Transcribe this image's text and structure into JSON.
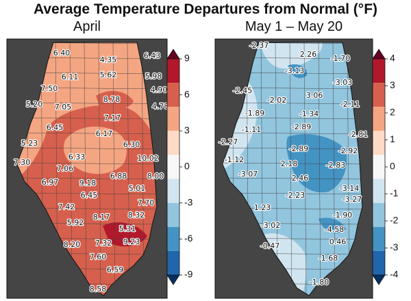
{
  "title": "Average Temperature Departures from Normal (°F)",
  "panels": [
    {
      "subtitle": "April",
      "colorbar_ticks": [
        "9",
        "6",
        "3",
        "0",
        "-3",
        "-6",
        "-9"
      ],
      "colors": [
        "#67001f",
        "#b2182b",
        "#d6604d",
        "#f4a582",
        "#fddbc7",
        "#f7f7f7",
        "#d1e5f0",
        "#92c5de",
        "#4393c3",
        "#2166ac",
        "#053061"
      ],
      "labels": [
        {
          "text": "6.40",
          "pos": [
            90,
            78
          ]
        },
        {
          "text": "4.35",
          "pos": [
            158,
            88
          ]
        },
        {
          "text": "6.43",
          "pos": [
            222,
            82
          ]
        },
        {
          "text": "6.11",
          "pos": [
            102,
            113
          ]
        },
        {
          "text": "5.62",
          "pos": [
            158,
            110
          ]
        },
        {
          "text": "5.98",
          "pos": [
            224,
            112
          ]
        },
        {
          "text": "7.50",
          "pos": [
            72,
            130
          ]
        },
        {
          "text": "4.90",
          "pos": [
            232,
            132
          ]
        },
        {
          "text": "5.20",
          "pos": [
            50,
            153
          ]
        },
        {
          "text": "7.05",
          "pos": [
            92,
            157
          ]
        },
        {
          "text": "8.78",
          "pos": [
            163,
            146
          ]
        },
        {
          "text": "4.78",
          "pos": [
            234,
            156
          ]
        },
        {
          "text": "7.17",
          "pos": [
            164,
            173
          ]
        },
        {
          "text": "6.45",
          "pos": [
            80,
            187
          ]
        },
        {
          "text": "6.17",
          "pos": [
            152,
            196
          ]
        },
        {
          "text": "5.23",
          "pos": [
            43,
            210
          ]
        },
        {
          "text": "6.30",
          "pos": [
            192,
            212
          ]
        },
        {
          "text": "6.33",
          "pos": [
            112,
            230
          ]
        },
        {
          "text": "10.02",
          "pos": [
            216,
            232
          ]
        },
        {
          "text": "7.30",
          "pos": [
            32,
            238
          ]
        },
        {
          "text": "7.06",
          "pos": [
            95,
            247
          ]
        },
        {
          "text": "6.88",
          "pos": [
            173,
            258
          ]
        },
        {
          "text": "8.00",
          "pos": [
            227,
            258
          ]
        },
        {
          "text": "6.97",
          "pos": [
            73,
            267
          ]
        },
        {
          "text": "9.18",
          "pos": [
            128,
            268
          ]
        },
        {
          "text": "5.01",
          "pos": [
            200,
            276
          ]
        },
        {
          "text": "6.45",
          "pos": [
            130,
            286
          ]
        },
        {
          "text": "7.70",
          "pos": [
            213,
            297
          ]
        },
        {
          "text": "7.42",
          "pos": [
            97,
            303
          ]
        },
        {
          "text": "8.17",
          "pos": [
            148,
            318
          ]
        },
        {
          "text": "8.32",
          "pos": [
            199,
            315
          ]
        },
        {
          "text": "5.92",
          "pos": [
            110,
            326
          ]
        },
        {
          "text": "5.31",
          "pos": [
            186,
            335
          ]
        },
        {
          "text": "9.23",
          "pos": [
            192,
            354
          ]
        },
        {
          "text": "7.32",
          "pos": [
            151,
            356
          ]
        },
        {
          "text": "8.20",
          "pos": [
            105,
            358
          ]
        },
        {
          "text": "7.60",
          "pos": [
            143,
            376
          ]
        },
        {
          "text": "6.59",
          "pos": [
            168,
            395
          ]
        },
        {
          "text": "8.58",
          "pos": [
            143,
            423
          ]
        }
      ]
    },
    {
      "subtitle": "May 1 – May 20",
      "colorbar_ticks": [
        "4",
        "3",
        "2",
        "1",
        "0",
        "-1",
        "-2",
        "-3",
        "-4"
      ],
      "colors": [
        "#67001f",
        "#b2182b",
        "#d6604d",
        "#f4a582",
        "#fddbc7",
        "#f7f7f7",
        "#d1e5f0",
        "#92c5de",
        "#4393c3",
        "#2166ac",
        "#053061"
      ],
      "labels": [
        {
          "text": "-2.37",
          "pos": [
            378,
            67
          ]
        },
        {
          "text": "2.26",
          "pos": [
            450,
            80
          ]
        },
        {
          "text": "-1.70",
          "pos": [
            497,
            86
          ]
        },
        {
          "text": "-3.13",
          "pos": [
            430,
            104
          ]
        },
        {
          "text": "-3.03",
          "pos": [
            500,
            121
          ]
        },
        {
          "text": "-2.45",
          "pos": [
            354,
            133
          ]
        },
        {
          "text": "3.06",
          "pos": [
            459,
            140
          ]
        },
        {
          "text": "-2.02",
          "pos": [
            404,
            147
          ]
        },
        {
          "text": "-2.11",
          "pos": [
            511,
            153
          ]
        },
        {
          "text": "-1.89",
          "pos": [
            372,
            166
          ]
        },
        {
          "text": "-1.34",
          "pos": [
            451,
            167
          ]
        },
        {
          "text": "-2.89",
          "pos": [
            440,
            186
          ]
        },
        {
          "text": "-1.11",
          "pos": [
            367,
            190
          ]
        },
        {
          "text": "-2.81",
          "pos": [
            523,
            197
          ]
        },
        {
          "text": "-2.27",
          "pos": [
            333,
            208
          ]
        },
        {
          "text": "-2.89",
          "pos": [
            436,
            218
          ]
        },
        {
          "text": "-2.92",
          "pos": [
            508,
            221
          ]
        },
        {
          "text": "-1.12",
          "pos": [
            342,
            234
          ]
        },
        {
          "text": "2.18",
          "pos": [
            422,
            240
          ]
        },
        {
          "text": "-2.83",
          "pos": [
            490,
            242
          ]
        },
        {
          "text": "-3.07",
          "pos": [
            362,
            255
          ]
        },
        {
          "text": "2.46",
          "pos": [
            438,
            261
          ]
        },
        {
          "text": "-3.14",
          "pos": [
            510,
            276
          ]
        },
        {
          "text": "-2.23",
          "pos": [
            431,
            286
          ]
        },
        {
          "text": "-3.27",
          "pos": [
            514,
            292
          ]
        },
        {
          "text": "1.23",
          "pos": [
            383,
            304
          ]
        },
        {
          "text": "-1.90",
          "pos": [
            500,
            315
          ]
        },
        {
          "text": "-3.02",
          "pos": [
            395,
            330
          ]
        },
        {
          "text": "-4.58",
          "pos": [
            488,
            336
          ]
        },
        {
          "text": "0.46",
          "pos": [
            493,
            354
          ]
        },
        {
          "text": "-0.47",
          "pos": [
            394,
            360
          ]
        },
        {
          "text": "-1.68",
          "pos": [
            479,
            378
          ]
        },
        {
          "text": "-1.80",
          "pos": [
            466,
            413
          ]
        }
      ]
    }
  ]
}
